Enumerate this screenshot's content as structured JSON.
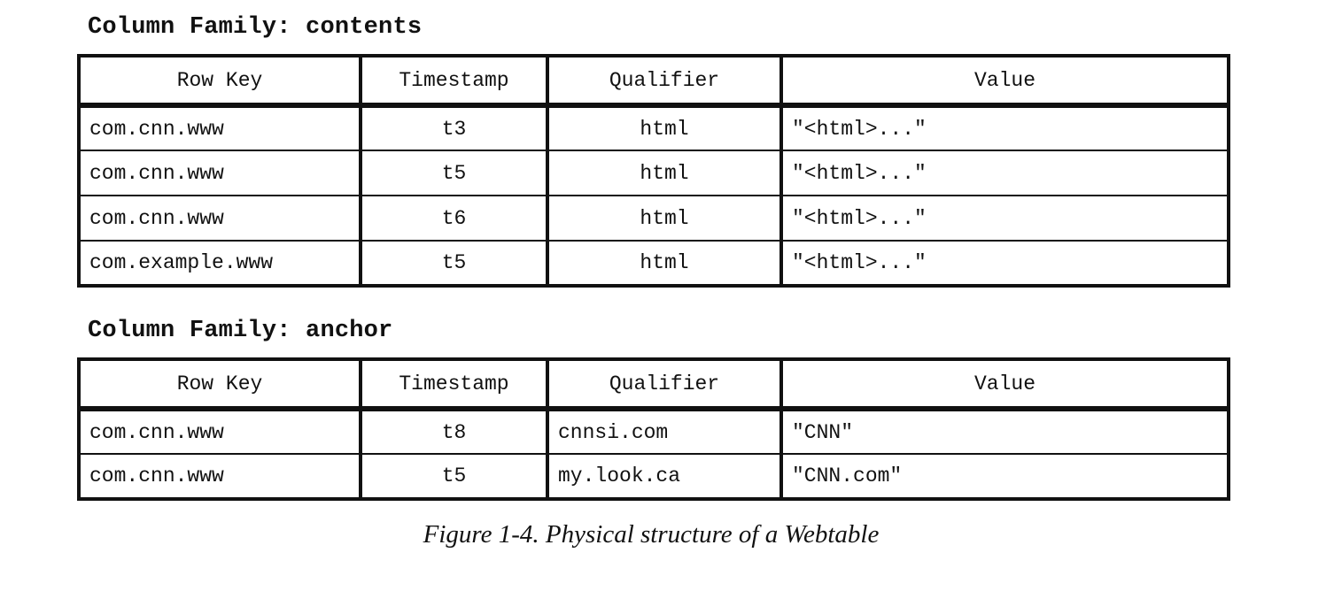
{
  "families": [
    {
      "title": "Column Family: contents",
      "headers": {
        "row_key": "Row Key",
        "timestamp": "Timestamp",
        "qualifier": "Qualifier",
        "value": "Value"
      },
      "rows": [
        {
          "row_key": "com.cnn.www",
          "timestamp": "t3",
          "qualifier": "html",
          "value": "\"<html>...\""
        },
        {
          "row_key": "com.cnn.www",
          "timestamp": "t5",
          "qualifier": "html",
          "value": "\"<html>...\""
        },
        {
          "row_key": "com.cnn.www",
          "timestamp": "t6",
          "qualifier": "html",
          "value": "\"<html>...\""
        },
        {
          "row_key": "com.example.www",
          "timestamp": "t5",
          "qualifier": "html",
          "value": "\"<html>...\""
        }
      ]
    },
    {
      "title": "Column Family: anchor",
      "headers": {
        "row_key": "Row Key",
        "timestamp": "Timestamp",
        "qualifier": "Qualifier",
        "value": "Value"
      },
      "rows": [
        {
          "row_key": "com.cnn.www",
          "timestamp": "t8",
          "qualifier": "cnnsi.com",
          "value": "\"CNN\""
        },
        {
          "row_key": "com.cnn.www",
          "timestamp": "t5",
          "qualifier": "my.look.ca",
          "value": "\"CNN.com\""
        }
      ]
    }
  ],
  "caption": "Figure 1-4. Physical structure of a Webtable"
}
